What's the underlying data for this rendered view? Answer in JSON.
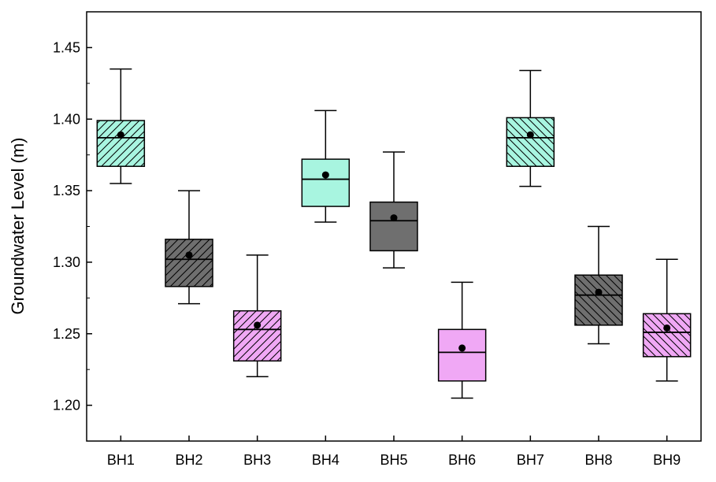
{
  "chart_data": {
    "type": "box",
    "ylabel": "Groundwater Level (m)",
    "xlabel": "",
    "ylim": [
      1.175,
      1.475
    ],
    "yticks": [
      "1.20",
      "1.25",
      "1.30",
      "1.35",
      "1.40",
      "1.45"
    ],
    "grid": false,
    "boxes": [
      {
        "category": "BH1",
        "min": 1.355,
        "q1": 1.367,
        "median": 1.387,
        "mean": 1.389,
        "q3": 1.399,
        "max": 1.435,
        "fill": "#a8f5e0",
        "hatch": "diag-up"
      },
      {
        "category": "BH2",
        "min": 1.271,
        "q1": 1.283,
        "median": 1.302,
        "mean": 1.305,
        "q3": 1.316,
        "max": 1.35,
        "fill": "#6f6f6f",
        "hatch": "diag-up"
      },
      {
        "category": "BH3",
        "min": 1.22,
        "q1": 1.231,
        "median": 1.253,
        "mean": 1.256,
        "q3": 1.266,
        "max": 1.305,
        "fill": "#f0a8f5",
        "hatch": "diag-up"
      },
      {
        "category": "BH4",
        "min": 1.328,
        "q1": 1.339,
        "median": 1.358,
        "mean": 1.361,
        "q3": 1.372,
        "max": 1.406,
        "fill": "#a8f5e0",
        "hatch": "none"
      },
      {
        "category": "BH5",
        "min": 1.296,
        "q1": 1.308,
        "median": 1.329,
        "mean": 1.331,
        "q3": 1.342,
        "max": 1.377,
        "fill": "#6f6f6f",
        "hatch": "none"
      },
      {
        "category": "BH6",
        "min": 1.205,
        "q1": 1.217,
        "median": 1.237,
        "mean": 1.24,
        "q3": 1.253,
        "max": 1.286,
        "fill": "#f0a8f5",
        "hatch": "none"
      },
      {
        "category": "BH7",
        "min": 1.353,
        "q1": 1.367,
        "median": 1.387,
        "mean": 1.389,
        "q3": 1.401,
        "max": 1.434,
        "fill": "#a8f5e0",
        "hatch": "diag-down"
      },
      {
        "category": "BH8",
        "min": 1.243,
        "q1": 1.256,
        "median": 1.277,
        "mean": 1.279,
        "q3": 1.291,
        "max": 1.325,
        "fill": "#6f6f6f",
        "hatch": "diag-down"
      },
      {
        "category": "BH9",
        "min": 1.217,
        "q1": 1.234,
        "median": 1.251,
        "mean": 1.254,
        "q3": 1.264,
        "max": 1.302,
        "fill": "#f0a8f5",
        "hatch": "diag-down"
      }
    ]
  }
}
